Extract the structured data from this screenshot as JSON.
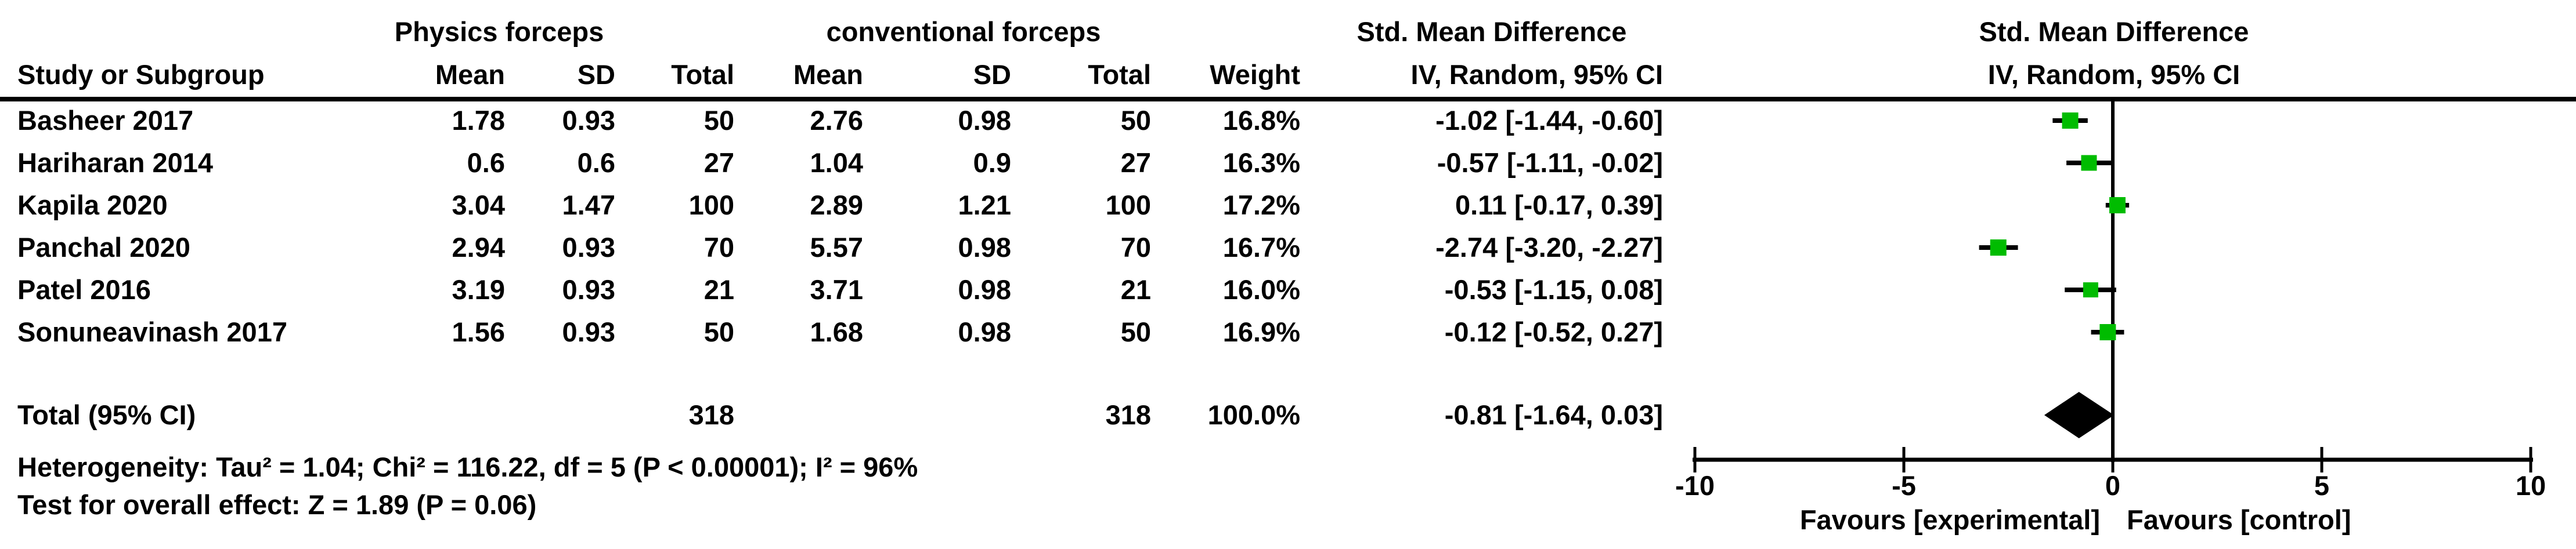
{
  "header": {
    "group1": "Physics forceps",
    "group2": "conventional forceps",
    "smd_col_title": "Std. Mean Difference",
    "smd_col_sub": "IV, Random, 95% CI",
    "plot_title": "Std. Mean Difference",
    "plot_sub": "IV, Random, 95% CI",
    "study_col": "Study or Subgroup",
    "mean": "Mean",
    "sd": "SD",
    "total": "Total",
    "weight": "Weight"
  },
  "studies": [
    {
      "name": "Basheer 2017",
      "mean1": "1.78",
      "sd1": "0.93",
      "total1": "50",
      "mean2": "2.76",
      "sd2": "0.98",
      "total2": "50",
      "weight": "16.8%",
      "ci": "-1.02 [-1.44, -0.60]"
    },
    {
      "name": "Hariharan 2014",
      "mean1": "0.6",
      "sd1": "0.6",
      "total1": "27",
      "mean2": "1.04",
      "sd2": "0.9",
      "total2": "27",
      "weight": "16.3%",
      "ci": "-0.57 [-1.11, -0.02]"
    },
    {
      "name": "Kapila 2020",
      "mean1": "3.04",
      "sd1": "1.47",
      "total1": "100",
      "mean2": "2.89",
      "sd2": "1.21",
      "total2": "100",
      "weight": "17.2%",
      "ci": "0.11 [-0.17, 0.39]"
    },
    {
      "name": "Panchal 2020",
      "mean1": "2.94",
      "sd1": "0.93",
      "total1": "70",
      "mean2": "5.57",
      "sd2": "0.98",
      "total2": "70",
      "weight": "16.7%",
      "ci": "-2.74 [-3.20, -2.27]"
    },
    {
      "name": "Patel 2016",
      "mean1": "3.19",
      "sd1": "0.93",
      "total1": "21",
      "mean2": "3.71",
      "sd2": "0.98",
      "total2": "21",
      "weight": "16.0%",
      "ci": "-0.53 [-1.15, 0.08]"
    },
    {
      "name": "Sonuneavinash 2017",
      "mean1": "1.56",
      "sd1": "0.93",
      "total1": "50",
      "mean2": "1.68",
      "sd2": "0.98",
      "total2": "50",
      "weight": "16.9%",
      "ci": "-0.12 [-0.52, 0.27]"
    }
  ],
  "total_row": {
    "label": "Total (95% CI)",
    "total1": "318",
    "total2": "318",
    "weight": "100.0%",
    "ci": "-0.81 [-1.64, 0.03]"
  },
  "footer": {
    "heterogeneity": "Heterogeneity: Tau² = 1.04; Chi² = 116.22, df = 5 (P < 0.00001); I² = 96%",
    "overall_effect": "Test for overall effect: Z = 1.89 (P = 0.06)"
  },
  "chart_data": {
    "type": "scatter",
    "subtype": "forest-plot",
    "title": "Std. Mean Difference",
    "method": "IV, Random, 95% CI",
    "xlim": [
      -10,
      10
    ],
    "ticks": [
      -10,
      -5,
      0,
      5,
      10
    ],
    "tick_labels": [
      "-10",
      "-5",
      "0",
      "5",
      "10"
    ],
    "favours_left": "Favours [experimental]",
    "favours_right": "Favours [control]",
    "marker_color": "#00BC00",
    "line_color": "#000000",
    "series": [
      {
        "name": "Basheer 2017",
        "est": -1.02,
        "lo": -1.44,
        "hi": -0.6,
        "weight": 16.8
      },
      {
        "name": "Hariharan 2014",
        "est": -0.57,
        "lo": -1.11,
        "hi": -0.02,
        "weight": 16.3
      },
      {
        "name": "Kapila 2020",
        "est": 0.11,
        "lo": -0.17,
        "hi": 0.39,
        "weight": 17.2
      },
      {
        "name": "Panchal 2020",
        "est": -2.74,
        "lo": -3.2,
        "hi": -2.27,
        "weight": 16.7
      },
      {
        "name": "Patel 2016",
        "est": -0.53,
        "lo": -1.15,
        "hi": 0.08,
        "weight": 16.0
      },
      {
        "name": "Sonuneavinash 2017",
        "est": -0.12,
        "lo": -0.52,
        "hi": 0.27,
        "weight": 16.9
      }
    ],
    "total": {
      "label": "Total (95% CI)",
      "est": -0.81,
      "lo": -1.64,
      "hi": 0.03
    }
  }
}
